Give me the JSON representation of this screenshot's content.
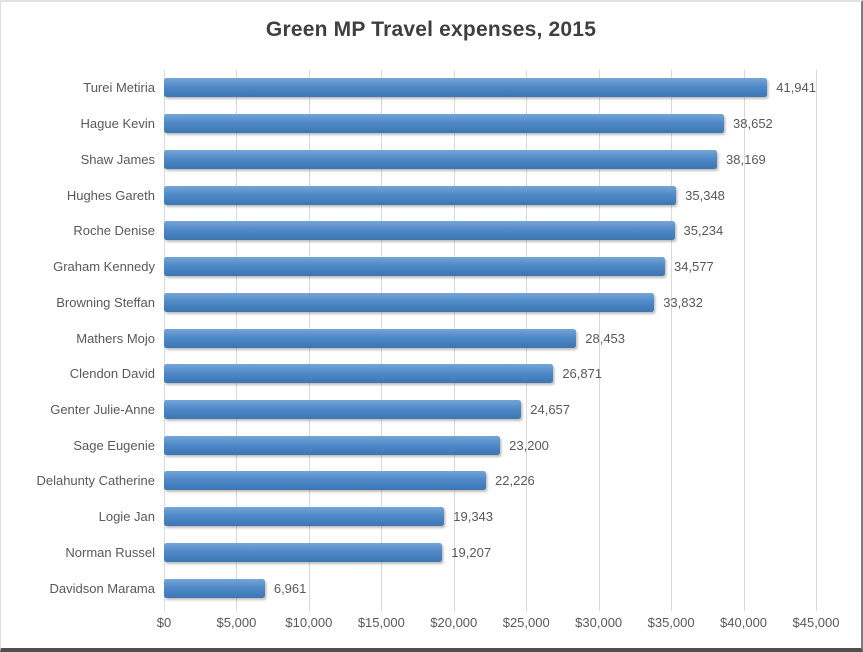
{
  "chart_data": {
    "type": "bar",
    "orientation": "horizontal",
    "title": "Green MP Travel expenses, 2015",
    "categories": [
      "Turei Metiria",
      "Hague Kevin",
      "Shaw James",
      "Hughes Gareth",
      "Roche Denise",
      "Graham Kennedy",
      "Browning Steffan",
      "Mathers Mojo",
      "Clendon David",
      "Genter Julie-Anne",
      "Sage Eugenie",
      "Delahunty Catherine",
      "Logie Jan",
      "Norman Russel",
      "Davidson Marama"
    ],
    "values": [
      41941,
      38652,
      38169,
      35348,
      35234,
      34577,
      33832,
      28453,
      26871,
      24657,
      23200,
      22226,
      19343,
      19207,
      6961
    ],
    "value_labels": [
      "41,941",
      "38,652",
      "38,169",
      "35,348",
      "35,234",
      "34,577",
      "33,832",
      "28,453",
      "26,871",
      "24,657",
      "23,200",
      "22,226",
      "19,343",
      "19,207",
      "6,961"
    ],
    "x_tick_labels": [
      "$0",
      "$5,000",
      "$10,000",
      "$15,000",
      "$20,000",
      "$25,000",
      "$30,000",
      "$35,000",
      "$40,000",
      "$45,000"
    ],
    "x_tick_values": [
      0,
      5000,
      10000,
      15000,
      20000,
      25000,
      30000,
      35000,
      40000,
      45000
    ],
    "xlim": [
      0,
      45000
    ],
    "xlabel": "",
    "ylabel": "",
    "grid": true,
    "legend": false,
    "data_labels": true,
    "theme": {
      "bar_top": "#74a5d6",
      "bar_mid": "#4e88c7",
      "bar_bottom": "#3e76b2",
      "grid_color": "#d9d9d9",
      "text_color": "#595959",
      "title_color": "#3f3f3f",
      "background": "#ffffff"
    }
  }
}
